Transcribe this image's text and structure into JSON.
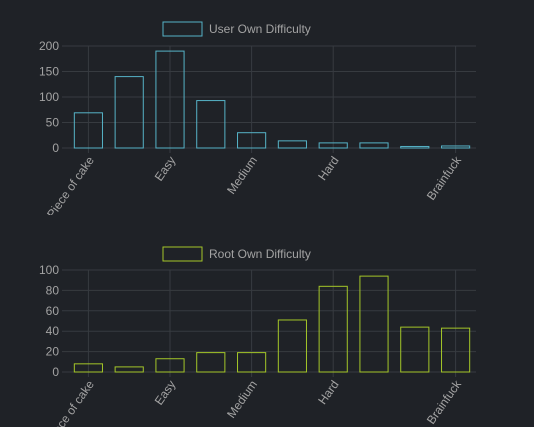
{
  "chart_data": [
    {
      "type": "bar",
      "legend": "User Own Difficulty",
      "color": "#56b3c7",
      "categories": [
        "1",
        "2",
        "3",
        "4",
        "5",
        "6",
        "7",
        "8",
        "9",
        "10"
      ],
      "tick_labels": [
        "Piece of cake",
        "",
        "Easy",
        "",
        "Medium",
        "",
        "Hard",
        "",
        "",
        "Brainfuck"
      ],
      "values": [
        69,
        140,
        190,
        93,
        30,
        14,
        10,
        10,
        3,
        4
      ],
      "ylim": [
        0,
        200
      ],
      "yticks": [
        0,
        50,
        100,
        150,
        200
      ],
      "grid": true,
      "legend_position": "top"
    },
    {
      "type": "bar",
      "legend": "Root Own Difficulty",
      "color": "#a4c628",
      "categories": [
        "1",
        "2",
        "3",
        "4",
        "5",
        "6",
        "7",
        "8",
        "9",
        "10"
      ],
      "tick_labels": [
        "Piece of cake",
        "",
        "Easy",
        "",
        "Medium",
        "",
        "Hard",
        "",
        "",
        "Brainfuck"
      ],
      "values": [
        8,
        5,
        13,
        19,
        19,
        51,
        84,
        94,
        44,
        43
      ],
      "ylim": [
        0,
        100
      ],
      "yticks": [
        0,
        20,
        40,
        60,
        80,
        100
      ],
      "grid": true,
      "legend_position": "top"
    }
  ]
}
